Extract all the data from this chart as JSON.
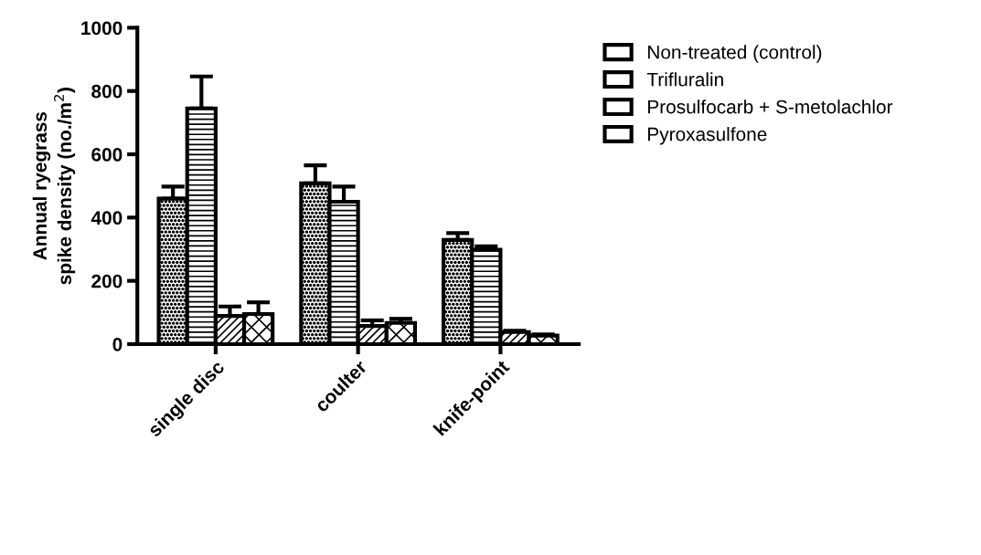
{
  "chart_data": {
    "type": "bar",
    "ylabel": "Annual ryegrass\nspike density (no./m$^{2}$)",
    "categories": [
      "single disc",
      "coulter",
      "knife-point"
    ],
    "series": [
      {
        "name": "Non-treated (control)",
        "color": "#000000",
        "values": [
          460,
          508,
          329
        ],
        "errors": [
          [
            460,
            498
          ],
          [
            508,
            565
          ],
          [
            329,
            351
          ]
        ]
      },
      {
        "name": "Trifluralin",
        "color": "#000000",
        "values": [
          745,
          450,
          298
        ],
        "errors": [
          [
            745,
            846
          ],
          [
            450,
            498
          ],
          [
            298,
            309
          ]
        ]
      },
      {
        "name": "Prosulfocarb + S-metolachlor",
        "color": "#000000",
        "values": [
          89,
          57,
          38
        ],
        "errors": [
          [
            89,
            119
          ],
          [
            57,
            75
          ],
          [
            38,
            42
          ]
        ]
      },
      {
        "name": "Pyroxasulfone",
        "color": "#000000",
        "values": [
          95,
          67,
          27
        ],
        "errors": [
          [
            95,
            132
          ],
          [
            67,
            80
          ],
          [
            27,
            31
          ]
        ]
      }
    ],
    "ylim": [
      0,
      1000
    ],
    "yticks": [
      0,
      200,
      400,
      600,
      800,
      1000
    ],
    "grid": false,
    "legend": "top right"
  }
}
